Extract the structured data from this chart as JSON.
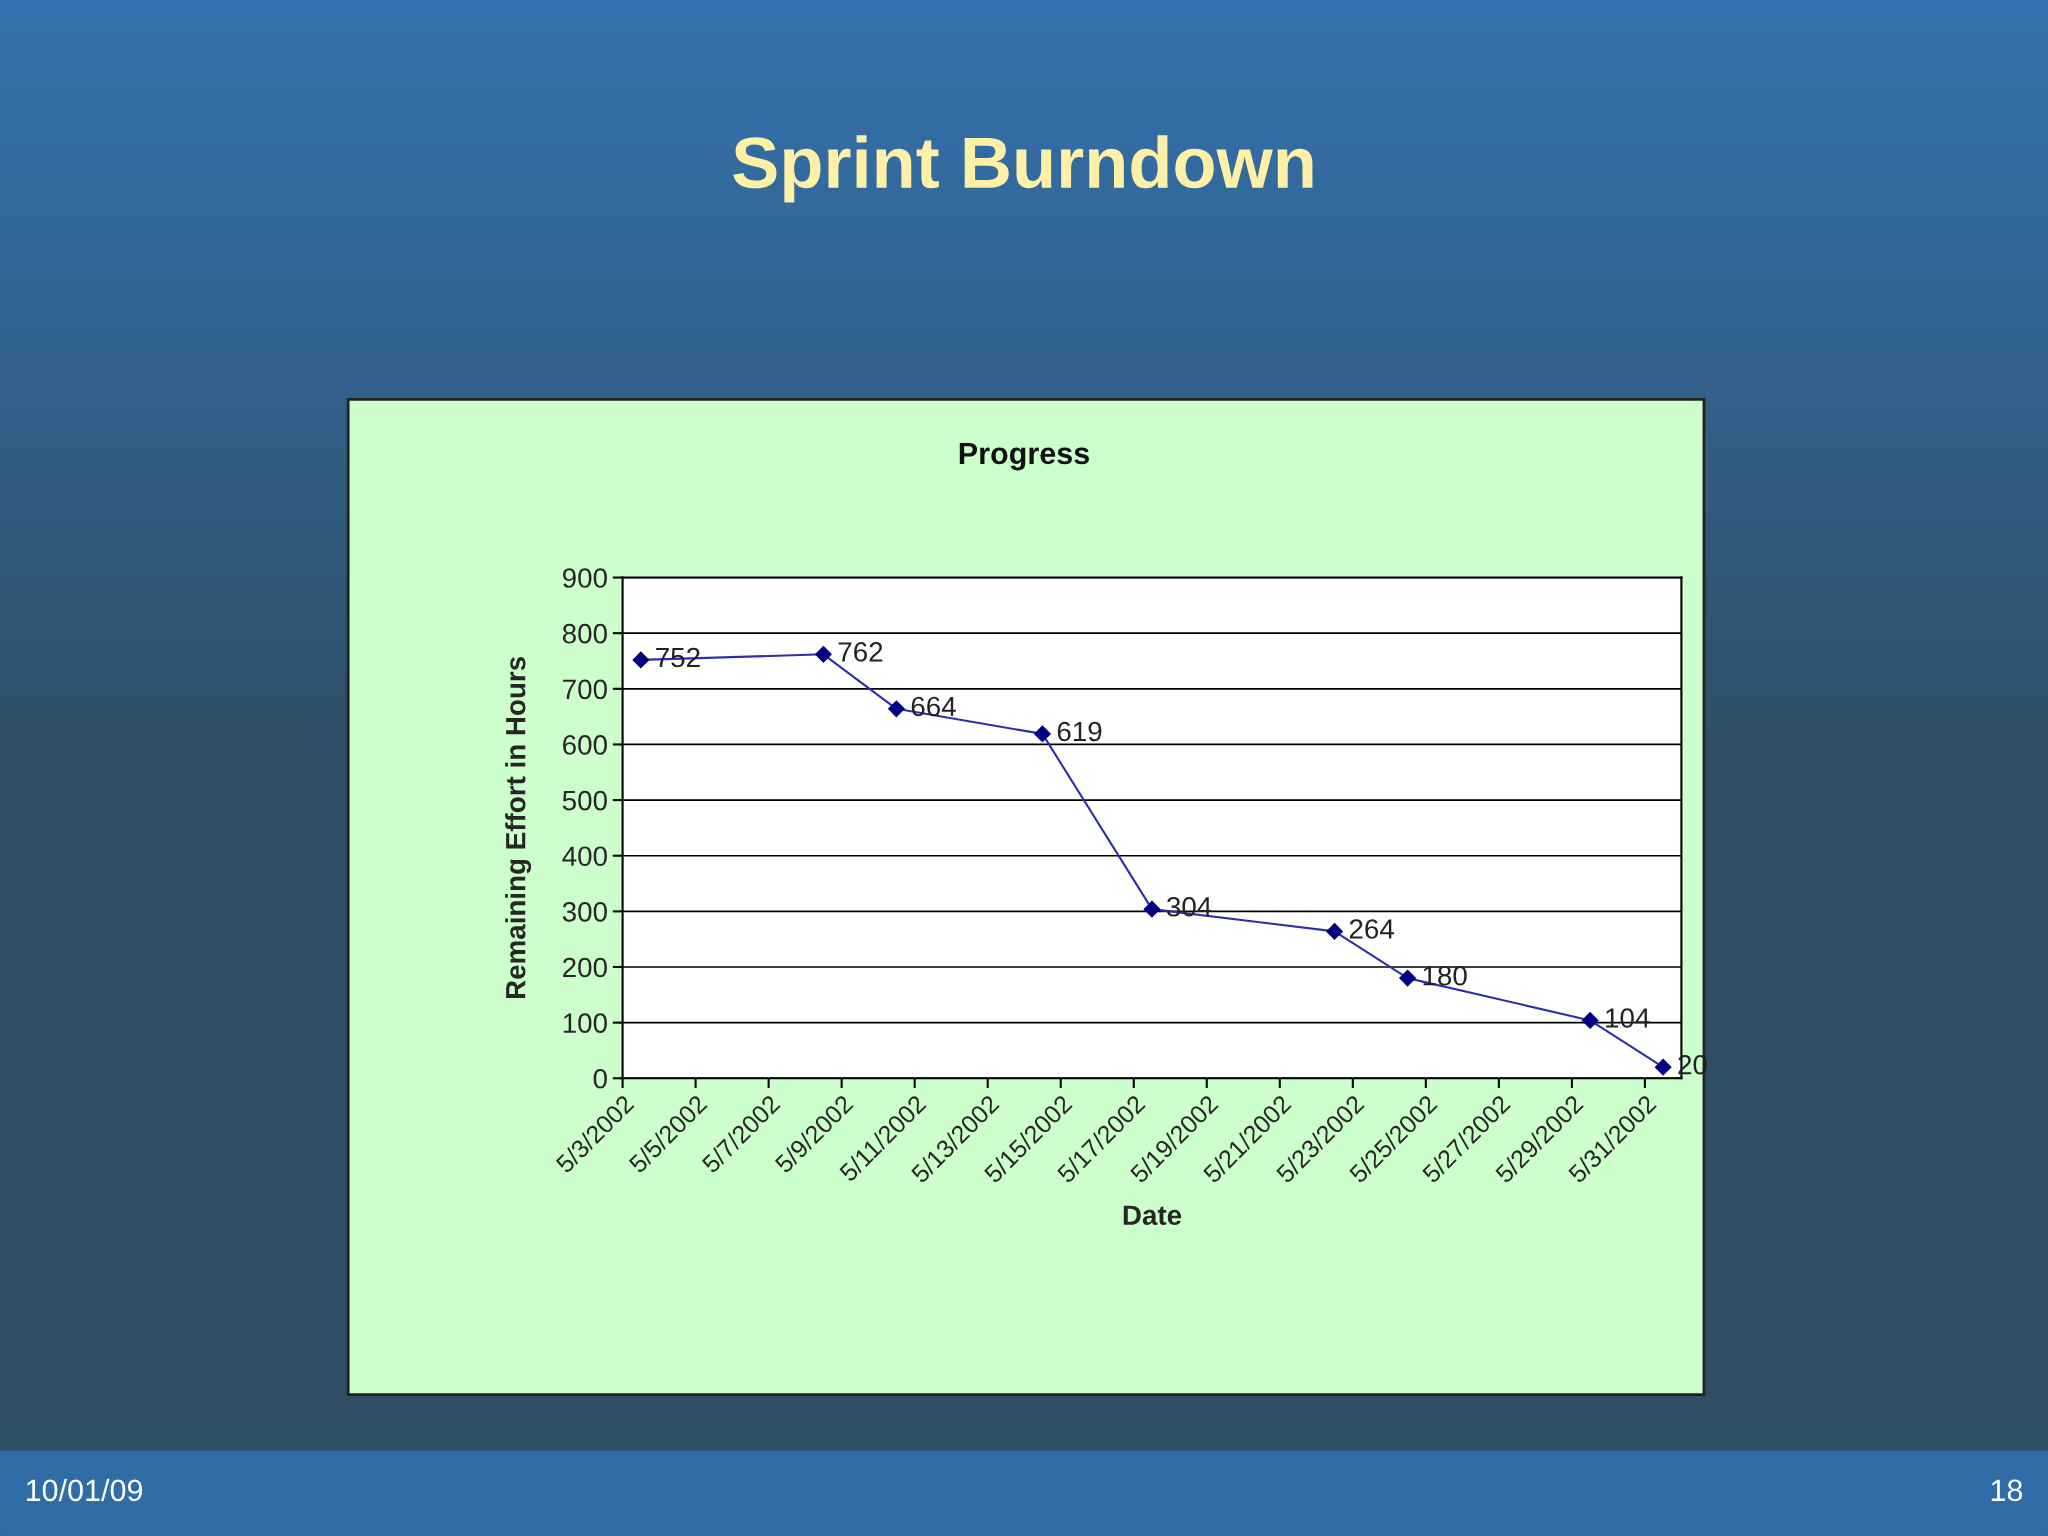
{
  "chart_data": {
    "type": "line",
    "title": "Sprint Burndown",
    "subtitle": "Progress",
    "xlabel": "Date",
    "ylabel": "Remaining Effort in Hours",
    "x": [
      "2002-05-03",
      "2002-05-08",
      "2002-05-10",
      "2002-05-14",
      "2002-05-17",
      "2002-05-22",
      "2002-05-24",
      "2002-05-29",
      "2002-05-31"
    ],
    "series": [
      {
        "color": "#2e2ea8",
        "values": [
          752,
          762,
          664,
          619,
          304,
          264,
          180,
          104,
          20
        ]
      }
    ],
    "data_labels": true,
    "marker": "diamond",
    "line_style": "solid",
    "grid": "y",
    "legend": false,
    "xlim": [
      "2002-05-02T12:00",
      "2002-05-31T12:00"
    ],
    "xticks": [
      {
        "value": "2002-05-02T12:00",
        "label": "5/3/2002"
      },
      {
        "value": "2002-05-04T12:00",
        "label": "5/5/2002"
      },
      {
        "value": "2002-05-06T12:00",
        "label": "5/7/2002"
      },
      {
        "value": "2002-05-08T12:00",
        "label": "5/9/2002"
      },
      {
        "value": "2002-05-10T12:00",
        "label": "5/11/2002"
      },
      {
        "value": "2002-05-12T12:00",
        "label": "5/13/2002"
      },
      {
        "value": "2002-05-14T12:00",
        "label": "5/15/2002"
      },
      {
        "value": "2002-05-16T12:00",
        "label": "5/17/2002"
      },
      {
        "value": "2002-05-18T12:00",
        "label": "5/19/2002"
      },
      {
        "value": "2002-05-20T12:00",
        "label": "5/21/2002"
      },
      {
        "value": "2002-05-22T12:00",
        "label": "5/23/2002"
      },
      {
        "value": "2002-05-24T12:00",
        "label": "5/25/2002"
      },
      {
        "value": "2002-05-26T12:00",
        "label": "5/27/2002"
      },
      {
        "value": "2002-05-28T12:00",
        "label": "5/29/2002"
      },
      {
        "value": "2002-05-30T12:00",
        "label": "5/31/2002"
      }
    ],
    "ylim": [
      0,
      900
    ],
    "yticks": [
      0,
      100,
      200,
      300,
      400,
      500,
      600,
      700,
      800,
      900
    ],
    "annotations": [
      "10/01/09",
      "18"
    ]
  }
}
